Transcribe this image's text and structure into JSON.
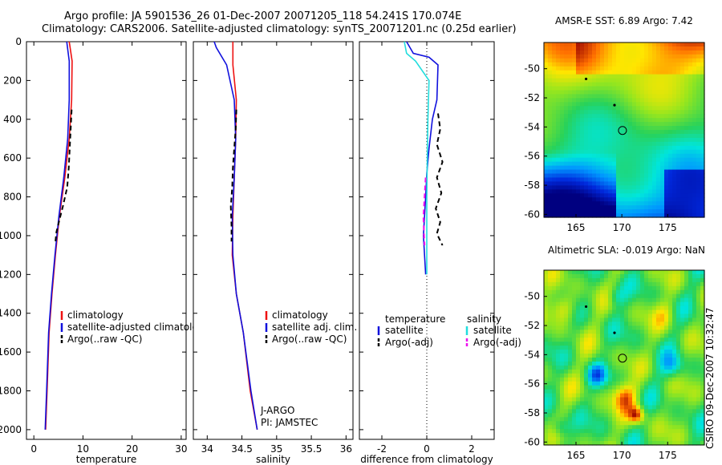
{
  "header": {
    "line1": "Argo profile: JA 5901536_26 01-Dec-2007 20071205_118 54.241S 170.074E",
    "line2": "Climatology: CARS2006. Satellite-adjusted climatology: synTS_20071201.nc (0.25d earlier)"
  },
  "side_label": "CSIRO 09-Dec-2007 10:32:47",
  "colors": {
    "red": "#ee1111",
    "blue": "#1111dd",
    "black": "#000000",
    "cyan": "#22dddd",
    "magenta": "#ee11ee"
  },
  "chart_data": [
    {
      "type": "line",
      "name": "temperature",
      "xlabel": "temperature",
      "ylabel": "",
      "xlim": [
        -1.5,
        31
      ],
      "ylim": [
        2050,
        0
      ],
      "xticks": [
        0,
        10,
        20,
        30
      ],
      "yticks": [
        0,
        200,
        400,
        600,
        800,
        1000,
        1200,
        1400,
        1600,
        1800,
        2000
      ],
      "series": [
        {
          "name": "climatology",
          "color": "red",
          "style": "solid",
          "x": [
            7.2,
            7.8,
            7.7,
            7.2,
            6.3,
            5.2,
            4.4,
            3.7,
            3.1,
            2.7,
            2.4
          ],
          "y": [
            0,
            100,
            300,
            500,
            700,
            900,
            1100,
            1300,
            1500,
            1800,
            2000
          ]
        },
        {
          "name": "satellite-adjusted climatology",
          "color": "blue",
          "style": "solid",
          "x": [
            6.7,
            7.2,
            7.2,
            6.9,
            6.1,
            5.1,
            4.3,
            3.6,
            3.0,
            2.6,
            2.3
          ],
          "y": [
            0,
            100,
            300,
            500,
            700,
            900,
            1100,
            1300,
            1500,
            1800,
            2000
          ]
        },
        {
          "name": "Argo(..raw -QC)",
          "color": "black",
          "style": "dashed",
          "x": [
            7.7,
            7.5,
            7.3,
            7.1,
            6.8,
            5.9,
            5.2,
            4.6,
            4.4
          ],
          "y": [
            350,
            450,
            550,
            650,
            750,
            850,
            920,
            980,
            1030
          ]
        }
      ],
      "legend": [
        {
          "label": "climatology",
          "color": "red"
        },
        {
          "label": "satellite-adjusted climatology",
          "color": "blue"
        },
        {
          "label": "Argo(..raw -QC)",
          "color": "black"
        }
      ]
    },
    {
      "type": "line",
      "name": "salinity",
      "xlabel": "salinity",
      "ylabel": "",
      "xlim": [
        33.8,
        36.1
      ],
      "ylim": [
        2050,
        0
      ],
      "xticks": [
        34,
        34.5,
        35,
        35.5,
        36
      ],
      "yticks": [],
      "series": [
        {
          "name": "climatology",
          "color": "red",
          "style": "solid",
          "x": [
            34.37,
            34.37,
            34.42,
            34.41,
            34.39,
            34.37,
            34.36,
            34.42,
            34.52,
            34.62,
            34.72
          ],
          "y": [
            0,
            120,
            300,
            500,
            700,
            900,
            1100,
            1300,
            1500,
            1800,
            2000
          ]
        },
        {
          "name": "satellite adj. clim.",
          "color": "blue",
          "style": "solid",
          "x": [
            34.1,
            34.13,
            34.28,
            34.39,
            34.41,
            34.39,
            34.36,
            34.37,
            34.42,
            34.52,
            34.63,
            34.72
          ],
          "y": [
            0,
            30,
            120,
            300,
            500,
            700,
            900,
            1100,
            1300,
            1500,
            1800,
            2000
          ]
        },
        {
          "name": "Argo(..raw -QC)",
          "color": "black",
          "style": "dashed",
          "x": [
            34.42,
            34.41,
            34.39,
            34.37,
            34.36,
            34.34,
            34.35,
            34.35
          ],
          "y": [
            350,
            450,
            550,
            650,
            750,
            850,
            950,
            1030
          ]
        }
      ],
      "legend": [
        {
          "label": "climatology",
          "color": "red"
        },
        {
          "label": "satellite adj. clim.",
          "color": "blue"
        },
        {
          "label": "Argo(..raw -QC)",
          "color": "black"
        }
      ],
      "annotations": [
        "J-ARGO",
        "PI: JAMSTEC"
      ]
    },
    {
      "type": "line",
      "name": "difference",
      "xlabel": "difference from climatology",
      "ylabel": "",
      "xlim": [
        -3,
        3
      ],
      "ylim": [
        2050,
        0
      ],
      "xticks": [
        -2,
        0,
        2
      ],
      "yticks": [],
      "zero_line": 0,
      "series": [
        {
          "name": "temperature satellite",
          "color": "blue",
          "style": "solid",
          "x": [
            -0.9,
            -0.6,
            0.1,
            0.5,
            0.45,
            0.25,
            0.1,
            0.0,
            -0.05,
            -0.1,
            -0.15,
            -0.1,
            -0.05
          ],
          "y": [
            0,
            60,
            80,
            120,
            300,
            400,
            550,
            680,
            800,
            900,
            1000,
            1100,
            1200
          ]
        },
        {
          "name": "temperature Argo(-adj)",
          "color": "black",
          "style": "dashed",
          "x": [
            0.5,
            0.6,
            0.45,
            0.7,
            0.45,
            0.65,
            0.4,
            0.6,
            0.45,
            0.7
          ],
          "y": [
            370,
            450,
            530,
            620,
            700,
            780,
            860,
            930,
            990,
            1050
          ]
        },
        {
          "name": "salinity satellite",
          "color": "cyan",
          "style": "solid",
          "x": [
            -1.0,
            -0.9,
            -0.5,
            0.1,
            0.05,
            0.02,
            0.0,
            0.0,
            0.0,
            0.0
          ],
          "y": [
            0,
            60,
            100,
            200,
            400,
            600,
            800,
            1000,
            1100,
            1200
          ]
        },
        {
          "name": "salinity Argo(-adj)",
          "color": "magenta",
          "style": "dashed",
          "x": [
            -0.05,
            -0.1,
            -0.15,
            -0.12,
            -0.1
          ],
          "y": [
            700,
            800,
            900,
            1000,
            1050
          ]
        }
      ],
      "legend_headers": [
        "temperature",
        "salinity"
      ],
      "legend": [
        {
          "label": "satellite",
          "color": "blue",
          "column": 0
        },
        {
          "label": "Argo(-adj)",
          "color": "black",
          "column": 0
        },
        {
          "label": "satellite",
          "color": "cyan",
          "column": 1
        },
        {
          "label": "Argo(-adj)",
          "color": "magenta",
          "column": 1
        }
      ]
    },
    {
      "type": "heatmap",
      "name": "sst-map",
      "title": "AMSR-E SST: 6.89 Argo: 7.42",
      "xlim": [
        161.5,
        179
      ],
      "ylim": [
        -60.2,
        -48.2
      ],
      "xticks": [
        165,
        170,
        175
      ],
      "yticks": [
        -50,
        -52,
        -54,
        -56,
        -58,
        -60
      ],
      "markers": [
        {
          "lon": 166.1,
          "lat": -50.7,
          "kind": "dot"
        },
        {
          "lon": 169.2,
          "lat": -52.5,
          "kind": "dot"
        },
        {
          "lon": 170.07,
          "lat": -54.24,
          "kind": "circle"
        }
      ]
    },
    {
      "type": "heatmap",
      "name": "sla-map",
      "title": "Altimetric SLA: -0.019 Argo: NaN",
      "xlim": [
        161.5,
        179
      ],
      "ylim": [
        -60.2,
        -48.2
      ],
      "xticks": [
        165,
        170,
        175
      ],
      "yticks": [
        -50,
        -52,
        -54,
        -56,
        -58,
        -60
      ],
      "markers": [
        {
          "lon": 166.1,
          "lat": -50.7,
          "kind": "dot"
        },
        {
          "lon": 169.2,
          "lat": -52.5,
          "kind": "dot"
        },
        {
          "lon": 170.07,
          "lat": -54.24,
          "kind": "circle"
        }
      ]
    }
  ]
}
